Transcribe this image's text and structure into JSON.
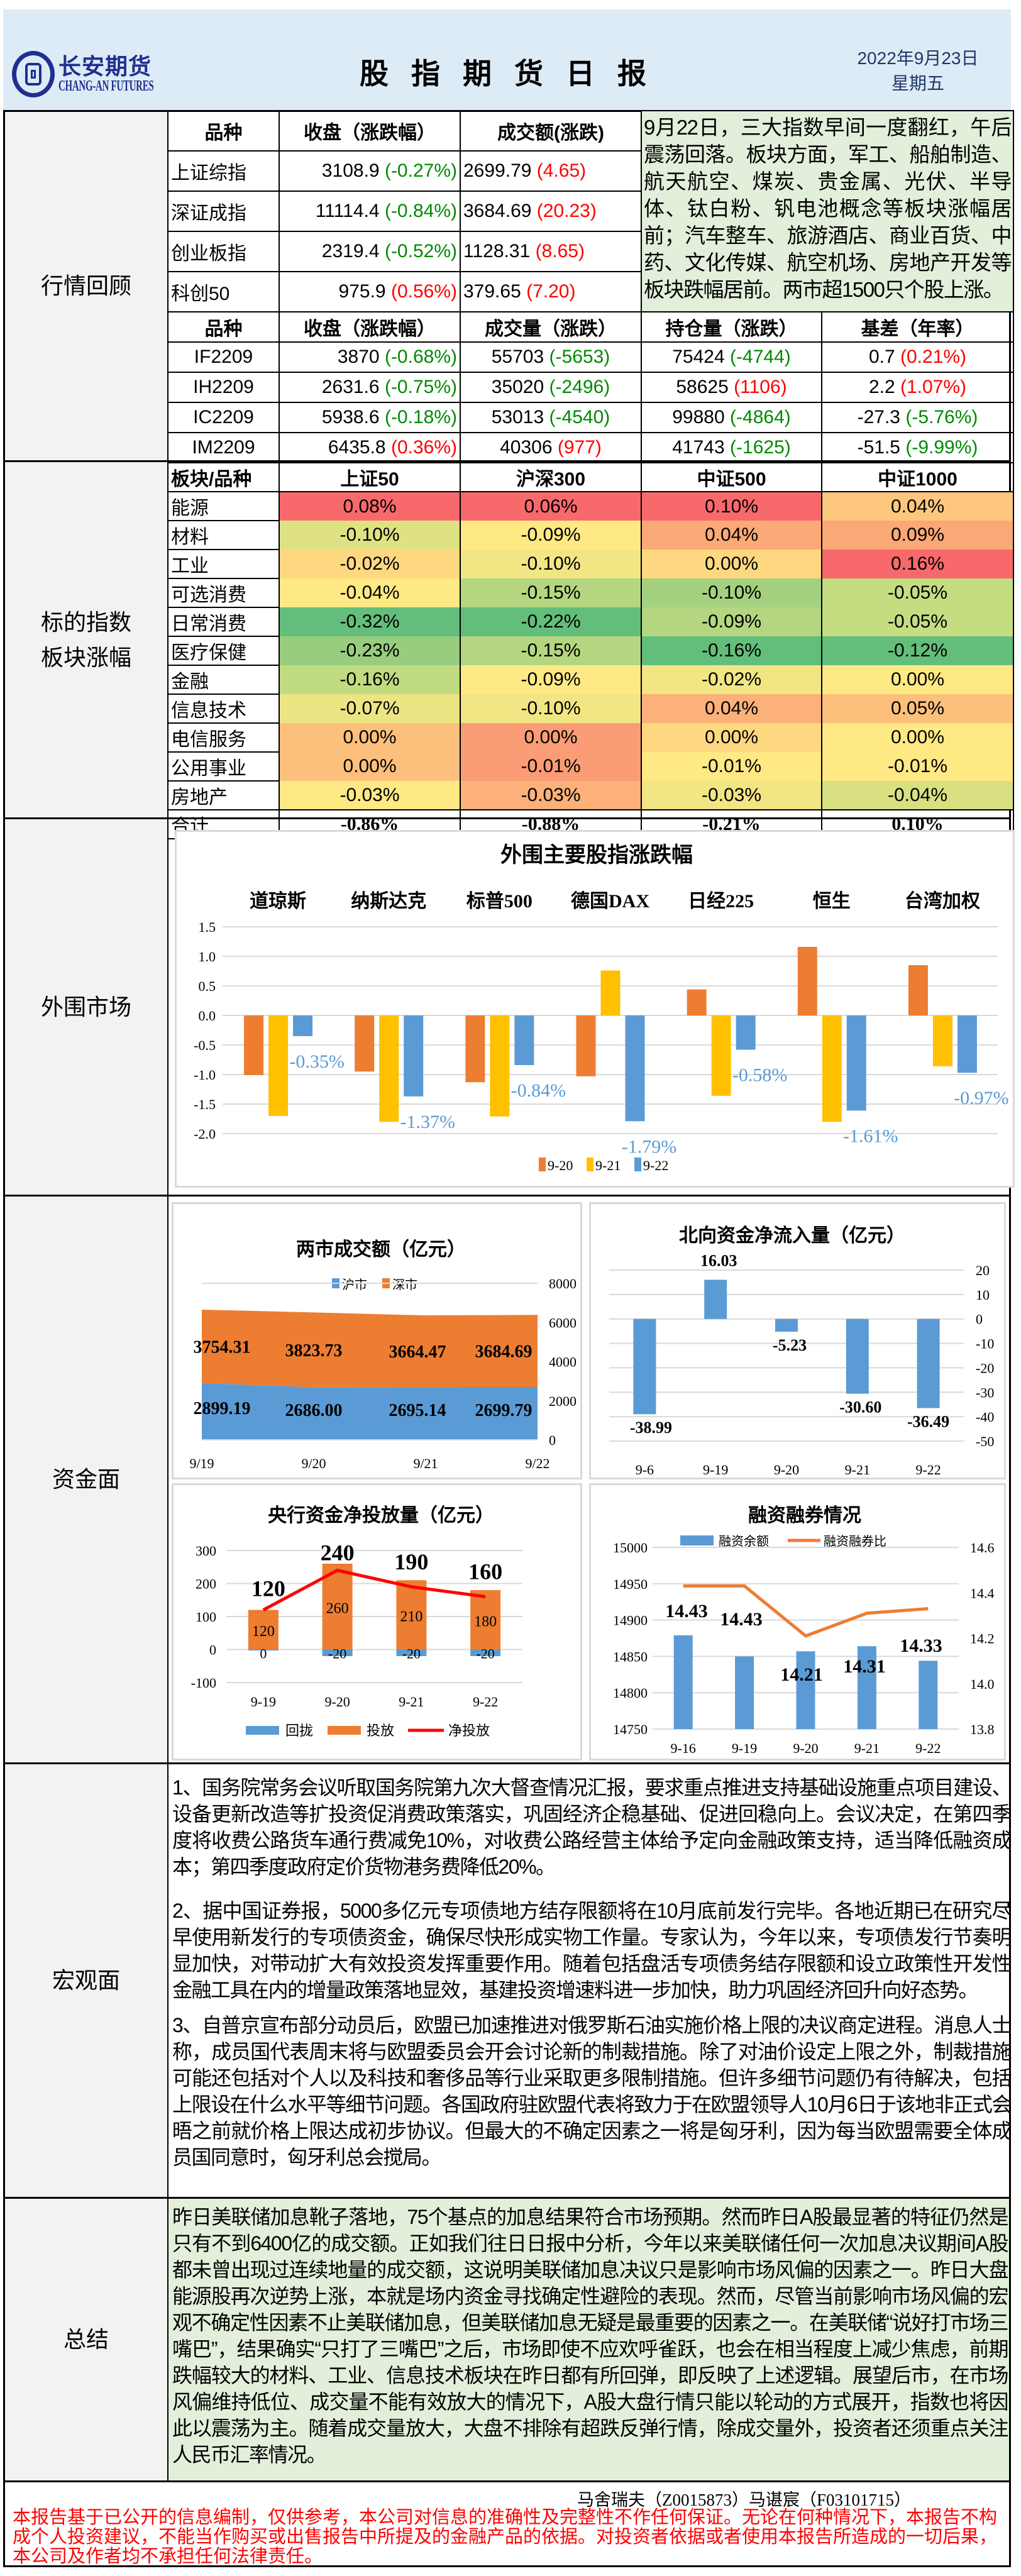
{
  "header": {
    "logo_cn": "长安期货",
    "logo_en": "CHANG-AN FUTURES",
    "title": "股 指 期 货 日 报",
    "date": "2022年9月23日",
    "weekday": "星期五"
  },
  "sections": {
    "market": "行情回顾",
    "sector": "标的指数\n板块涨幅",
    "overseas": "外围市场",
    "funds": "资金面",
    "macro": "宏观面",
    "summary": "总结"
  },
  "colors": {
    "up": "#ff0000",
    "down": "#008a00",
    "summary_bg": "#e2efda",
    "header_bg": "#ddebf7"
  },
  "market_review": {
    "spot_headers": [
      "品种",
      "收盘（涨跌幅）",
      "成交额(涨跌)"
    ],
    "spot_rows": [
      {
        "name": "上证综指",
        "close": "3108.9",
        "close_chg": "(-0.27%)",
        "amount": "2699.79",
        "amount_chg": "(4.65)"
      },
      {
        "name": "深证成指",
        "close": "11114.4",
        "close_chg": "(-0.84%)",
        "amount": "3684.69",
        "amount_chg": "(20.23)"
      },
      {
        "name": "创业板指",
        "close": "2319.4",
        "close_chg": "(-0.52%)",
        "amount": "1128.31",
        "amount_chg": "(8.65)"
      },
      {
        "name": "科创50",
        "close": "975.9",
        "close_chg": "(0.56%)",
        "amount": "379.65",
        "amount_chg": "(7.20)"
      }
    ],
    "summary": "9月22日，三大指数早间一度翻红，午后震荡回落。板块方面，军工、船舶制造、航天航空、煤炭、贵金属、光伏、半导体、钛白粉、钒电池概念等板块涨幅居前；汽车整车、旅游酒店、商业百货、中药、文化传媒、航空机场、房地产开发等板块跌幅居前。两市超1500只个股上涨。",
    "fut_headers": [
      "品种",
      "收盘（涨跌幅）",
      "成交量（涨跌）",
      "持仓量（涨跌）",
      "基差（年率）"
    ],
    "fut_rows": [
      {
        "name": "IF2209",
        "close": "3870",
        "close_chg": "(-0.68%)",
        "vol": "55703",
        "vol_chg": "(-5653)",
        "oi": "75424",
        "oi_chg": "(-4744)",
        "basis": "0.7",
        "basis_rate": "(0.21%)"
      },
      {
        "name": "IH2209",
        "close": "2631.6",
        "close_chg": "(-0.75%)",
        "vol": "35020",
        "vol_chg": "(-2496)",
        "oi": "58625",
        "oi_chg": "(1106)",
        "basis": "2.2",
        "basis_rate": "(1.07%)"
      },
      {
        "name": "IC2209",
        "close": "5938.6",
        "close_chg": "(-0.18%)",
        "vol": "53013",
        "vol_chg": "(-4540)",
        "oi": "99880",
        "oi_chg": "(-4864)",
        "basis": "-27.3",
        "basis_rate": "(-5.76%)"
      },
      {
        "name": "IM2209",
        "close": "6435.8",
        "close_chg": "(0.36%)",
        "vol": "40306",
        "vol_chg": "(977)",
        "oi": "41743",
        "oi_chg": "(-1625)",
        "basis": "-51.5",
        "basis_rate": "(-9.99%)"
      }
    ]
  },
  "sector": {
    "headers": [
      "板块/品种",
      "上证50",
      "沪深300",
      "中证500",
      "中证1000"
    ],
    "rows": [
      {
        "name": "能源",
        "values": [
          "0.08%",
          "0.06%",
          "0.10%",
          "0.04%"
        ],
        "colors": [
          "#f8696b",
          "#f8696b",
          "#f8696b",
          "#fdc87e"
        ]
      },
      {
        "name": "材料",
        "values": [
          "-0.10%",
          "-0.09%",
          "0.04%",
          "0.09%"
        ],
        "colors": [
          "#dfe283",
          "#ffe984",
          "#fba977",
          "#fba877"
        ]
      },
      {
        "name": "工业",
        "values": [
          "-0.02%",
          "-0.10%",
          "0.00%",
          "0.16%"
        ],
        "colors": [
          "#fed880",
          "#f1e683",
          "#fed880",
          "#f8696b"
        ]
      },
      {
        "name": "可选消费",
        "values": [
          "-0.04%",
          "-0.15%",
          "-0.10%",
          "-0.05%"
        ],
        "colors": [
          "#ffe984",
          "#b5d680",
          "#a4d17f",
          "#c5dd81"
        ]
      },
      {
        "name": "日常消费",
        "values": [
          "-0.32%",
          "-0.22%",
          "-0.09%",
          "-0.05%"
        ],
        "colors": [
          "#63be7b",
          "#63be7b",
          "#b5d680",
          "#c5dd81"
        ]
      },
      {
        "name": "医疗保健",
        "values": [
          "-0.23%",
          "-0.15%",
          "-0.16%",
          "-0.12%"
        ],
        "colors": [
          "#98cd7e",
          "#b5d680",
          "#63be7b",
          "#63be7b"
        ]
      },
      {
        "name": "金融",
        "values": [
          "-0.16%",
          "-0.09%",
          "-0.02%",
          "0.00%"
        ],
        "colors": [
          "#c1db81",
          "#ffe984",
          "#f1e683",
          "#ffe984"
        ]
      },
      {
        "name": "信息技术",
        "values": [
          "-0.07%",
          "-0.10%",
          "0.04%",
          "0.05%"
        ],
        "colors": [
          "#ece583",
          "#f1e683",
          "#fbb179",
          "#fdc07c"
        ]
      },
      {
        "name": "电信服务",
        "values": [
          "0.00%",
          "0.00%",
          "0.00%",
          "0.00%"
        ],
        "colors": [
          "#fdc07c",
          "#fa9c75",
          "#fed880",
          "#ffe984"
        ]
      },
      {
        "name": "公用事业",
        "values": [
          "0.00%",
          "-0.01%",
          "-0.01%",
          "-0.01%"
        ],
        "colors": [
          "#fdc07c",
          "#fa9c75",
          "#ffe984",
          "#ffe984"
        ]
      },
      {
        "name": "房地产",
        "values": [
          "-0.03%",
          "-0.03%",
          "-0.03%",
          "-0.04%"
        ],
        "colors": [
          "#ffe984",
          "#fbb179",
          "#f1e683",
          "#d9e082"
        ]
      }
    ],
    "total": {
      "name": "合计",
      "values": [
        "-0.86%",
        "-0.88%",
        "-0.21%",
        "0.10%"
      ]
    }
  },
  "chart_data": [
    {
      "type": "bar",
      "title": "外围主要股指涨跌幅",
      "categories": [
        "道琼斯",
        "纳斯达克",
        "标普500",
        "德国DAX",
        "日经225",
        "恒生",
        "台湾加权"
      ],
      "series": [
        {
          "name": "9-20",
          "color": "#ed7d31",
          "values": [
            -1.01,
            -0.95,
            -1.13,
            -1.03,
            0.44,
            1.16,
            0.85
          ]
        },
        {
          "name": "9-21",
          "color": "#ffc000",
          "values": [
            -1.7,
            -1.8,
            -1.71,
            0.76,
            -1.36,
            -1.8,
            -0.86
          ]
        },
        {
          "name": "9-22",
          "color": "#5b9bd5",
          "values": [
            -0.35,
            -1.37,
            -0.84,
            -1.79,
            -0.58,
            -1.61,
            -0.97
          ],
          "data_labels": [
            "-0.35%",
            "-1.37%",
            "-0.84%",
            "-1.79%",
            "-0.58%",
            "-1.61%",
            "-0.97%"
          ]
        }
      ],
      "ylim": [
        -2.0,
        1.5
      ],
      "yticks": [
        "1.5",
        "1.0",
        "0.5",
        "0.0",
        "-0.5",
        "-1.0",
        "-1.5",
        "-2.0"
      ],
      "grid": true,
      "legend": "bottom"
    },
    {
      "type": "area",
      "title": "两市成交额（亿元）",
      "categories": [
        "9/19",
        "9/20",
        "9/21",
        "9/22"
      ],
      "series": [
        {
          "name": "沪市",
          "color": "#5b9bd5",
          "values": [
            2899.19,
            2686.0,
            2695.14,
            2699.79
          ],
          "data_labels": [
            "2899.19",
            "2686.00",
            "2695.14",
            "2699.79"
          ]
        },
        {
          "name": "深市",
          "color": "#ed7d31",
          "values": [
            3754.31,
            3823.73,
            3664.47,
            3684.69
          ],
          "data_labels": [
            "3754.31",
            "3823.73",
            "3664.47",
            "3684.69"
          ]
        }
      ],
      "stacked": true,
      "ylim": [
        0,
        8000
      ],
      "yticks": [
        "8000",
        "6000",
        "4000",
        "2000",
        "0"
      ],
      "legend": "top"
    },
    {
      "type": "bar",
      "title": "北向资金净流入量（亿元）",
      "categories": [
        "9-6",
        "9-19",
        "9-20",
        "9-21",
        "9-22"
      ],
      "series": [
        {
          "name": "北向资金",
          "color": "#5b9bd5",
          "values": [
            -38.99,
            16.03,
            -5.23,
            -30.6,
            -36.49
          ],
          "data_labels": [
            "-38.99",
            "16.03",
            "-5.23",
            "-30.60",
            "-36.49"
          ]
        }
      ],
      "ylim": [
        -50,
        20
      ],
      "yticks": [
        "20",
        "10",
        "0",
        "-10",
        "-20",
        "-30",
        "-40",
        "-50"
      ]
    },
    {
      "type": "bar",
      "title": "央行资金净投放量（亿元）",
      "categories": [
        "9-19",
        "9-20",
        "9-21",
        "9-22"
      ],
      "series": [
        {
          "name": "回拢",
          "color": "#5b9bd5",
          "values": [
            0,
            -20,
            -20,
            -20
          ],
          "data_labels": [
            "0",
            "-20",
            "-20",
            "-20"
          ]
        },
        {
          "name": "投放",
          "color": "#ed7d31",
          "values": [
            120,
            260,
            210,
            180
          ],
          "data_labels": [
            "120",
            "260",
            "210",
            "180"
          ]
        },
        {
          "name": "净投放",
          "color": "#ff0000",
          "type": "line",
          "values": [
            120,
            240,
            190,
            160
          ],
          "data_labels": [
            "120",
            "240",
            "190",
            "160"
          ]
        }
      ],
      "stacked": true,
      "ylim": [
        -100,
        300
      ],
      "yticks": [
        "300",
        "200",
        "100",
        "0",
        "-100"
      ],
      "legend": "bottom"
    },
    {
      "type": "bar",
      "title": "融资融券情况",
      "categories": [
        "9-16",
        "9-19",
        "9-20",
        "9-21",
        "9-22"
      ],
      "series": [
        {
          "name": "融资余额",
          "color": "#5b9bd5",
          "axis": "left",
          "values": [
            14879,
            14850,
            14857,
            14864,
            14844
          ]
        },
        {
          "name": "融资融券比",
          "color": "#ed7d31",
          "type": "line",
          "axis": "right",
          "values": [
            14.43,
            14.43,
            14.21,
            14.31,
            14.33
          ],
          "data_labels": [
            "14.43",
            "14.43",
            "14.21",
            "14.31",
            "14.33"
          ]
        }
      ],
      "ylim": [
        14750,
        15000
      ],
      "y2lim": [
        13.8,
        14.6
      ],
      "yticks": [
        "15000",
        "14950",
        "14900",
        "14850",
        "14800",
        "14750"
      ],
      "y2ticks": [
        "14.6",
        "14.4",
        "14.2",
        "14.0",
        "13.8"
      ],
      "legend": "top"
    }
  ],
  "macro": {
    "paragraphs": [
      "1、国务院常务会议听取国务院第九次大督查情况汇报，要求重点推进支持基础设施重点项目建设、设备更新改造等扩投资促消费政策落实，巩固经济企稳基础、促进回稳向上。会议决定，在第四季度将收费公路货车通行费减免10%，对收费公路经营主体给予定向金融政策支持，适当降低融资成本；第四季度政府定价货物港务费降低20%。",
      "2、据中国证券报，5000多亿元专项债地方结存限额将在10月底前发行完毕。各地近期已在研究尽早使用新发行的专项债资金，确保尽快形成实物工作量。专家认为，今年以来，专项债发行节奏明显加快，对带动扩大有效投资发挥重要作用。随着包括盘活专项债务结存限额和设立政策性开发性金融工具在内的增量政策落地显效，基建投资增速料进一步加快，助力巩固经济回升向好态势。",
      "3、自普京宣布部分动员后，欧盟已加速推进对俄罗斯石油实施价格上限的决议商定进程。消息人士称，成员国代表周末将与欧盟委员会开会讨论新的制裁措施。除了对油价设定上限之外，制裁措施可能还包括对个人以及科技和奢侈品等行业采取更多限制措施。但许多细节问题仍有待解决，包括上限设在什么水平等细节问题。各国政府驻欧盟代表将致力于在欧盟领导人10月6日于该地非正式会晤之前就价格上限达成初步协议。但最大的不确定因素之一将是匈牙利，因为每当欧盟需要全体成员国同意时，匈牙利总会搅局。"
    ]
  },
  "summary": {
    "text": "昨日美联储加息靴子落地，75个基点的加息结果符合市场预期。然而昨日A股最显著的特征仍然是只有不到6400亿的成交额。正如我们往日日报中分析，今年以来美联储任何一次加息决议期间A股都未曾出现过连续地量的成交额，这说明美联储加息决议只是影响市场风偏的因素之一。昨日大盘能源股再次逆势上涨，本就是场内资金寻找确定性避险的表现。然而，尽管当前影响市场风偏的宏观不确定性因素不止美联储加息，但美联储加息无疑是最重要的因素之一。在美联储“说好打市场三嘴巴”，结果确实“只打了三嘴巴”之后，市场即使不应欢呼雀跃，也会在相当程度上减少焦虑，前期跌幅较大的材料、工业、信息技术板块在昨日都有所回弹，即反映了上述逻辑。展望后市，在市场风偏维持低位、成交量不能有效放大的情况下，A股大盘行情只能以轮动的方式展开，指数也将因此以震荡为主。随着成交量放大，大盘不排除有超跌反弹行情，除成交量外，投资者还须重点关注人民币汇率情况。"
  },
  "footer": {
    "authors": "马舍瑞夫（Z0015873）马谌宸（F03101715）",
    "disclaimer": "本报告基于已公开的信息编制，仅供参考，本公司对信息的准确性及完整性不作任何保证。无论在何种情况下，本报告不构成个人投资建议，不能当作购买或出售报告中所提及的金融产品的依据。对投资者依据或者使用本报告所造成的一切后果，本公司及作者均不承担任何法律责任。"
  }
}
